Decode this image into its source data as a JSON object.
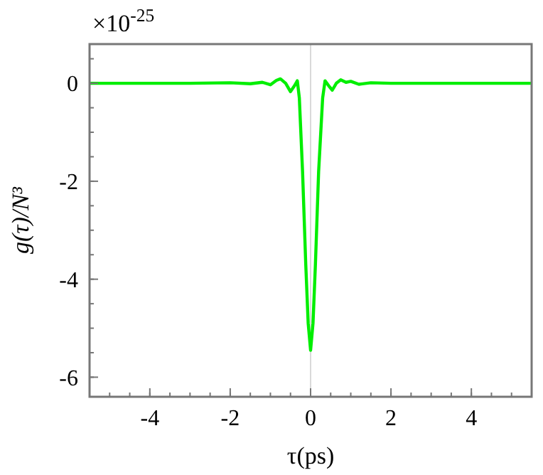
{
  "chart_data": {
    "type": "line",
    "xlabel": "τ(ps)",
    "ylabel": "g(τ)/N³",
    "annotations": [
      "×10$^{-25}$"
    ],
    "xlim": [
      -5.5,
      5.5
    ],
    "xticks": [
      -4,
      -2,
      0,
      2,
      4
    ],
    "ylim": [
      -6.4,
      0.8
    ],
    "yticks": [
      0,
      -2,
      -4,
      -6
    ],
    "grid": false,
    "line_style": "solid",
    "ref_lines": [
      {
        "axis": "x",
        "value": 0,
        "color": "#d9d9d9"
      }
    ],
    "series": [
      {
        "color": "#00ee00",
        "x": [
          -5.5,
          -3,
          -2,
          -1.5,
          -1.2,
          -1.0,
          -0.85,
          -0.75,
          -0.62,
          -0.5,
          -0.4,
          -0.33,
          -0.28,
          -0.2,
          -0.12,
          -0.06,
          0,
          0.06,
          0.12,
          0.2,
          0.3,
          0.36,
          0.45,
          0.54,
          0.64,
          0.75,
          0.88,
          1.0,
          1.2,
          1.5,
          2,
          5.5
        ],
        "values": [
          0,
          0,
          0.01,
          -0.01,
          0.02,
          -0.03,
          0.06,
          0.09,
          0,
          -0.17,
          -0.05,
          0.05,
          -0.3,
          -1.8,
          -3.7,
          -4.9,
          -5.45,
          -4.9,
          -3.7,
          -1.8,
          -0.3,
          0.05,
          -0.05,
          -0.14,
          0,
          0.07,
          0.02,
          0.04,
          -0.02,
          0.01,
          0,
          0
        ]
      }
    ]
  }
}
